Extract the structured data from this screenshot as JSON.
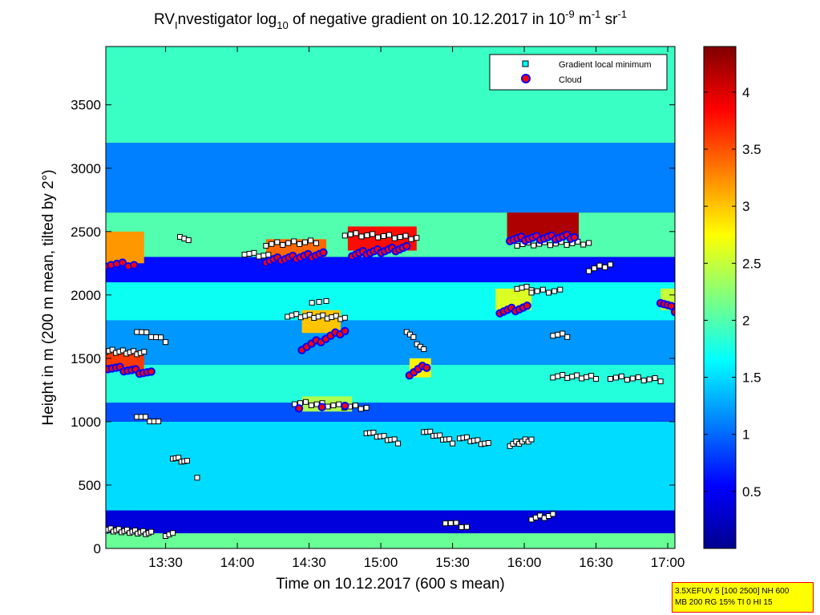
{
  "chart_data": {
    "type": "heatmap",
    "title_parts": {
      "pre": "RV",
      "sub1": "I",
      "mid": "nvestigator log",
      "sub2": "10",
      "post": " of negative gradient on 10.12.2017 in 10",
      "sup1": "-9",
      "unit1": " m",
      "sup2": "-1",
      "unit2": " sr",
      "sup3": "-1"
    },
    "xlabel": "Time on 10.12.2017 (600 s mean)",
    "ylabel": "Height in m (200 m mean, tilted by 2°)",
    "x_axis": {
      "min_hour": 13.0833,
      "max_hour": 17.05,
      "ticks": [
        {
          "hour": 13.5,
          "label": "13:30"
        },
        {
          "hour": 14.0,
          "label": "14:00"
        },
        {
          "hour": 14.5,
          "label": "14:30"
        },
        {
          "hour": 15.0,
          "label": "15:00"
        },
        {
          "hour": 15.5,
          "label": "15:30"
        },
        {
          "hour": 16.0,
          "label": "16:00"
        },
        {
          "hour": 16.5,
          "label": "16:30"
        },
        {
          "hour": 17.0,
          "label": "17:00"
        }
      ]
    },
    "y_axis": {
      "min": 0,
      "max": 3960,
      "ticks": [
        {
          "value": 0,
          "label": "0"
        },
        {
          "value": 500,
          "label": "500"
        },
        {
          "value": 1000,
          "label": "1000"
        },
        {
          "value": 1500,
          "label": "1500"
        },
        {
          "value": 2000,
          "label": "2000"
        },
        {
          "value": 2500,
          "label": "2500"
        },
        {
          "value": 3000,
          "label": "3000"
        },
        {
          "value": 3500,
          "label": "3500"
        }
      ]
    },
    "colorbar": {
      "min": 0,
      "max": 4.4,
      "ticks": [
        {
          "value": 0.5,
          "label": "0.5"
        },
        {
          "value": 1,
          "label": "1"
        },
        {
          "value": 1.5,
          "label": "1.5"
        },
        {
          "value": 2,
          "label": "2"
        },
        {
          "value": 2.5,
          "label": "2.5"
        },
        {
          "value": 3,
          "label": "3"
        },
        {
          "value": 3.5,
          "label": "3.5"
        },
        {
          "value": 4,
          "label": "4"
        }
      ],
      "colormap": "jet"
    },
    "legend": {
      "position": "top-right",
      "entries": [
        {
          "label": "Gradient local minimum",
          "marker": "square",
          "color": "#00ffff"
        },
        {
          "label": "Cloud",
          "marker": "circle",
          "color": "#ff0000"
        }
      ]
    },
    "layers": [
      {
        "name": "surface-band",
        "t0": 13.08,
        "t1": 17.05,
        "h0": 0,
        "h1": 120,
        "v": 2.1
      },
      {
        "name": "low-band",
        "t0": 13.08,
        "t1": 17.05,
        "h0": 120,
        "h1": 300,
        "v": 0.4
      },
      {
        "name": "mixed-layer",
        "t0": 13.08,
        "t1": 17.05,
        "h0": 300,
        "h1": 1000,
        "v": 1.5
      },
      {
        "name": "band-1050",
        "t0": 13.08,
        "t1": 17.05,
        "h0": 1000,
        "h1": 1150,
        "v": 0.9
      },
      {
        "name": "band-1300",
        "t0": 13.08,
        "t1": 17.05,
        "h0": 1150,
        "h1": 1450,
        "v": 1.8
      },
      {
        "name": "band-1600",
        "t0": 13.08,
        "t1": 17.05,
        "h0": 1450,
        "h1": 1800,
        "v": 1.2
      },
      {
        "name": "band-2000",
        "t0": 13.08,
        "t1": 17.05,
        "h0": 1800,
        "h1": 2100,
        "v": 1.7
      },
      {
        "name": "band-2200",
        "t0": 13.08,
        "t1": 17.05,
        "h0": 2100,
        "h1": 2300,
        "v": 0.6
      },
      {
        "name": "band-2450",
        "t0": 13.08,
        "t1": 17.05,
        "h0": 2300,
        "h1": 2650,
        "v": 2.0
      },
      {
        "name": "band-2900",
        "t0": 13.08,
        "t1": 17.05,
        "h0": 2650,
        "h1": 3200,
        "v": 1.1
      },
      {
        "name": "band-3600",
        "t0": 13.08,
        "t1": 17.05,
        "h0": 3200,
        "h1": 3960,
        "v": 1.9
      }
    ],
    "patches": [
      {
        "t0": 13.08,
        "t1": 13.35,
        "h0": 2250,
        "h1": 2500,
        "v": 3.2
      },
      {
        "t0": 13.08,
        "t1": 13.35,
        "h0": 1400,
        "h1": 1560,
        "v": 3.6
      },
      {
        "t0": 14.2,
        "t1": 14.62,
        "h0": 2300,
        "h1": 2440,
        "v": 3.4
      },
      {
        "t0": 14.77,
        "t1": 15.25,
        "h0": 2350,
        "h1": 2540,
        "v": 3.8
      },
      {
        "t0": 14.45,
        "t1": 14.72,
        "h0": 1700,
        "h1": 1880,
        "v": 3.0
      },
      {
        "t0": 15.88,
        "t1": 16.38,
        "h0": 2440,
        "h1": 2650,
        "v": 4.2
      },
      {
        "t0": 15.8,
        "t1": 16.05,
        "h0": 1880,
        "h1": 2050,
        "v": 2.6
      },
      {
        "t0": 16.95,
        "t1": 17.05,
        "h0": 1880,
        "h1": 2050,
        "v": 2.5
      },
      {
        "t0": 15.2,
        "t1": 15.35,
        "h0": 1350,
        "h1": 1500,
        "v": 2.8
      },
      {
        "t0": 14.45,
        "t1": 14.8,
        "h0": 1080,
        "h1": 1200,
        "v": 2.4
      }
    ],
    "clouds": [
      {
        "t0": 13.08,
        "t1": 13.28,
        "h0": 2240,
        "h1": 2240,
        "n": 6
      },
      {
        "t0": 13.1,
        "t1": 13.4,
        "h0": 1430,
        "h1": 1380,
        "n": 12
      },
      {
        "t0": 14.2,
        "t1": 14.6,
        "h0": 2270,
        "h1": 2320,
        "n": 16
      },
      {
        "t0": 14.8,
        "t1": 15.18,
        "h0": 2320,
        "h1": 2370,
        "n": 16
      },
      {
        "t0": 14.45,
        "t1": 14.75,
        "h0": 1580,
        "h1": 1720,
        "n": 10
      },
      {
        "t0": 15.2,
        "t1": 15.32,
        "h0": 1380,
        "h1": 1440,
        "n": 5
      },
      {
        "t0": 15.83,
        "t1": 16.02,
        "h0": 1870,
        "h1": 1900,
        "n": 8
      },
      {
        "t0": 15.9,
        "t1": 16.35,
        "h0": 2440,
        "h1": 2460,
        "n": 18
      },
      {
        "t0": 16.95,
        "t1": 17.05,
        "h0": 1950,
        "h1": 1880,
        "n": 5
      },
      {
        "t0": 14.43,
        "t1": 14.75,
        "h0": 1120,
        "h1": 1120,
        "n": 3
      }
    ],
    "minima": [
      {
        "t0": 13.08,
        "t1": 13.4,
        "h0": 150,
        "h1": 120,
        "n": 18
      },
      {
        "t0": 13.55,
        "t1": 13.65,
        "h0": 720,
        "h1": 680,
        "n": 6
      },
      {
        "t0": 13.72,
        "t1": 13.74,
        "h0": 570,
        "h1": 570,
        "n": 1
      },
      {
        "t0": 13.3,
        "t1": 13.45,
        "h0": 1050,
        "h1": 990,
        "n": 6
      },
      {
        "t0": 13.3,
        "t1": 13.5,
        "h0": 1720,
        "h1": 1640,
        "n": 7
      },
      {
        "t0": 14.05,
        "t1": 14.25,
        "h0": 2330,
        "h1": 2300,
        "n": 7
      },
      {
        "t0": 14.35,
        "t1": 14.75,
        "h0": 1840,
        "h1": 1820,
        "n": 14
      },
      {
        "t0": 14.4,
        "t1": 14.9,
        "h0": 1150,
        "h1": 1110,
        "n": 14
      },
      {
        "t0": 14.9,
        "t1": 15.12,
        "h0": 920,
        "h1": 840,
        "n": 10
      },
      {
        "t0": 15.3,
        "t1": 15.5,
        "h0": 930,
        "h1": 840,
        "n": 10
      },
      {
        "t0": 15.45,
        "t1": 15.6,
        "h0": 210,
        "h1": 170,
        "n": 5
      },
      {
        "t0": 15.55,
        "t1": 15.75,
        "h0": 880,
        "h1": 820,
        "n": 9
      },
      {
        "t0": 15.9,
        "t1": 16.05,
        "h0": 820,
        "h1": 860,
        "n": 8
      },
      {
        "t0": 16.05,
        "t1": 16.2,
        "h0": 240,
        "h1": 260,
        "n": 6
      },
      {
        "t0": 16.2,
        "t1": 16.5,
        "h0": 1360,
        "h1": 1350,
        "n": 10
      },
      {
        "t0": 16.6,
        "t1": 16.95,
        "h0": 1350,
        "h1": 1330,
        "n": 10
      },
      {
        "t0": 16.45,
        "t1": 16.6,
        "h0": 2200,
        "h1": 2240,
        "n": 5
      },
      {
        "t0": 14.75,
        "t1": 15.25,
        "h0": 2480,
        "h1": 2450,
        "n": 14
      },
      {
        "t0": 14.2,
        "t1": 14.55,
        "h0": 2400,
        "h1": 2420,
        "n": 10
      },
      {
        "t0": 15.95,
        "t1": 16.45,
        "h0": 2400,
        "h1": 2410,
        "n": 14
      },
      {
        "t0": 15.95,
        "t1": 16.05,
        "h0": 2060,
        "h1": 2050,
        "n": 4
      },
      {
        "t0": 16.05,
        "t1": 16.25,
        "h0": 2030,
        "h1": 2030,
        "n": 6
      },
      {
        "t0": 15.18,
        "t1": 15.3,
        "h0": 1720,
        "h1": 1560,
        "n": 6
      },
      {
        "t0": 16.2,
        "t1": 16.3,
        "h0": 1690,
        "h1": 1680,
        "n": 4
      },
      {
        "t0": 13.08,
        "t1": 13.35,
        "h0": 1560,
        "h1": 1540,
        "n": 12
      },
      {
        "t0": 13.6,
        "t1": 13.66,
        "h0": 2470,
        "h1": 2420,
        "n": 3
      },
      {
        "t0": 13.5,
        "t1": 13.55,
        "h0": 110,
        "h1": 110,
        "n": 3
      },
      {
        "t0": 14.52,
        "t1": 14.62,
        "h0": 1950,
        "h1": 1940,
        "n": 3
      }
    ]
  }
}
